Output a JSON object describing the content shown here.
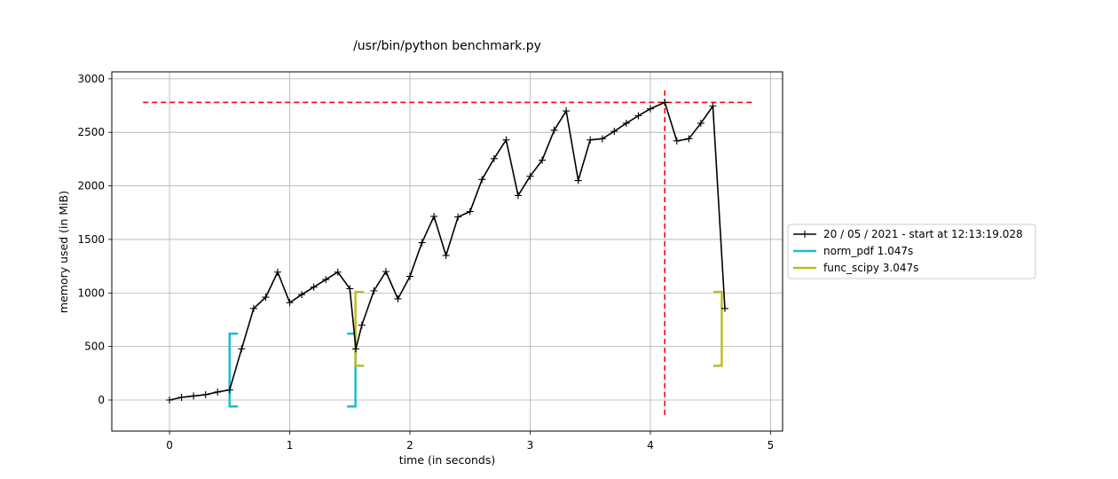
{
  "chart_data": {
    "type": "line",
    "title": "/usr/bin/python benchmark.py",
    "xlabel": "time (in seconds)",
    "ylabel": "memory used (in MiB)",
    "xlim": [
      -0.48,
      5.1
    ],
    "ylim": [
      -290,
      3065
    ],
    "x_ticks": [
      0,
      1,
      2,
      3,
      4,
      5
    ],
    "y_ticks": [
      0,
      500,
      1000,
      1500,
      2000,
      2500,
      3000
    ],
    "grid": true,
    "legend_position": "center-right, outside plot",
    "series": [
      {
        "name": "20 / 05 / 2021 - start at 12:13:19.028",
        "color": "#000000",
        "marker": "plus",
        "x": [
          0.0,
          0.1,
          0.2,
          0.3,
          0.4,
          0.5,
          0.6,
          0.7,
          0.8,
          0.9,
          1.0,
          1.1,
          1.2,
          1.3,
          1.4,
          1.5,
          1.55,
          1.6,
          1.7,
          1.8,
          1.9,
          2.0,
          2.1,
          2.2,
          2.3,
          2.4,
          2.5,
          2.6,
          2.7,
          2.8,
          2.9,
          3.0,
          3.1,
          3.2,
          3.3,
          3.4,
          3.5,
          3.6,
          3.7,
          3.8,
          3.9,
          4.0,
          4.12,
          4.22,
          4.32,
          4.42,
          4.52,
          4.62
        ],
        "y": [
          0,
          25,
          38,
          50,
          75,
          95,
          478,
          855,
          960,
          1195,
          910,
          985,
          1055,
          1125,
          1195,
          1040,
          478,
          700,
          1020,
          1200,
          945,
          1155,
          1470,
          1715,
          1350,
          1710,
          1760,
          2060,
          2255,
          2430,
          1910,
          2090,
          2240,
          2520,
          2700,
          2050,
          2430,
          2440,
          2510,
          2585,
          2655,
          2720,
          2780,
          2420,
          2440,
          2585,
          2745,
          855
        ]
      }
    ],
    "function_brackets": [
      {
        "name": "norm_pdf 1.047s",
        "color": "#17becf",
        "start": 0.5,
        "end": 1.547,
        "min_mem": -60,
        "max_mem": 620
      },
      {
        "name": "func_scipy 3.047s",
        "color": "#bcbd22",
        "start": 1.547,
        "end": 4.594,
        "min_mem": 320,
        "max_mem": 1010
      }
    ],
    "peak_markers": {
      "color": "#ff0000",
      "peak_memory": 2780,
      "peak_time": 4.12,
      "hline_xrange": [
        -0.22,
        4.85
      ],
      "vline_yrange": [
        -140,
        2920
      ]
    }
  }
}
